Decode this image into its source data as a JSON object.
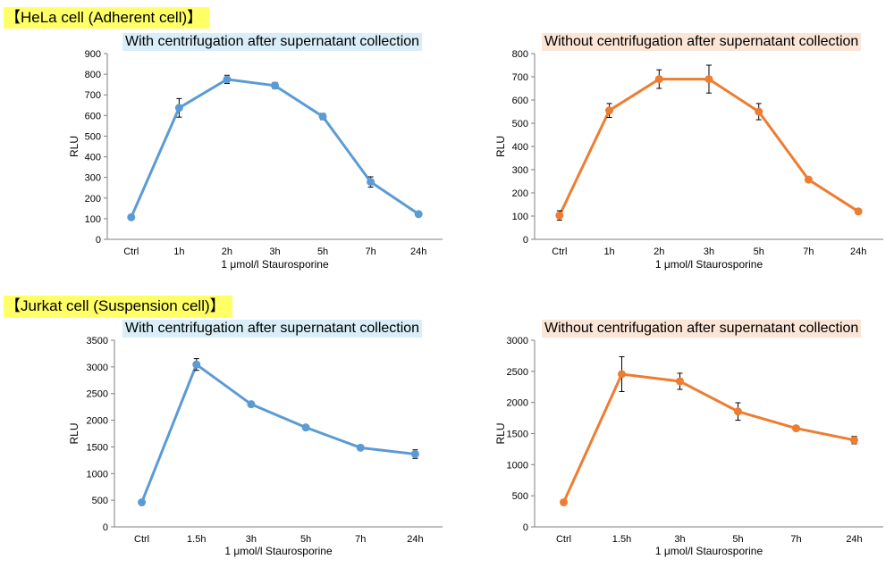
{
  "sections": [
    {
      "label": "【HeLa cell (Adherent cell)】"
    },
    {
      "label": "【Jurkat cell (Suspension cell)】"
    }
  ],
  "chart_data": [
    {
      "type": "line",
      "title": "With centrifugation after supernatant collection",
      "title_bg": "#d9eef8",
      "color": "#5b9bd5",
      "xlabel": "1 μmol/l  Staurosporine",
      "ylabel": "RLU",
      "categories": [
        "Ctrl",
        "1h",
        "2h",
        "3h",
        "5h",
        "7h",
        "24h"
      ],
      "values": [
        107,
        637,
        775,
        745,
        595,
        278,
        122
      ],
      "errors": [
        10,
        45,
        20,
        15,
        15,
        25,
        8
      ],
      "ylim": [
        0,
        900
      ],
      "yticks": [
        0,
        100,
        200,
        300,
        400,
        500,
        600,
        700,
        800,
        900
      ],
      "grid": false
    },
    {
      "type": "line",
      "title": "Without centrifugation after supernatant collection",
      "title_bg": "#fbe5d6",
      "color": "#ed7d31",
      "xlabel": "1 μmol/l  Staurosporine",
      "ylabel": "RLU",
      "categories": [
        "Ctrl",
        "1h",
        "2h",
        "3h",
        "5h",
        "7h",
        "24h"
      ],
      "values": [
        103,
        555,
        690,
        690,
        550,
        257,
        120
      ],
      "errors": [
        20,
        30,
        40,
        60,
        35,
        10,
        10
      ],
      "ylim": [
        0,
        800
      ],
      "yticks": [
        0,
        100,
        200,
        300,
        400,
        500,
        600,
        700,
        800
      ],
      "grid": false
    },
    {
      "type": "line",
      "title": "With centrifugation after supernatant collection",
      "title_bg": "#d9eef8",
      "color": "#5b9bd5",
      "xlabel": "1 μmol/l  Staurosporine",
      "ylabel": "RLU",
      "categories": [
        "Ctrl",
        "1.5h",
        "3h",
        "5h",
        "7h",
        "24h"
      ],
      "values": [
        460,
        3045,
        2300,
        1865,
        1485,
        1365
      ],
      "errors": [
        20,
        110,
        40,
        30,
        40,
        80
      ],
      "ylim": [
        0,
        3500
      ],
      "yticks": [
        0,
        500,
        1000,
        1500,
        2000,
        2500,
        3000,
        3500
      ],
      "grid": false
    },
    {
      "type": "line",
      "title": "Without centrifugation after supernatant collection",
      "title_bg": "#fbe5d6",
      "color": "#ed7d31",
      "xlabel": "1 μmol/l  Staurosporine",
      "ylabel": "RLU",
      "categories": [
        "Ctrl",
        "1.5h",
        "3h",
        "5h",
        "7h",
        "24h"
      ],
      "values": [
        395,
        2455,
        2340,
        1855,
        1585,
        1395
      ],
      "errors": [
        15,
        280,
        130,
        140,
        30,
        60
      ],
      "ylim": [
        0,
        3000
      ],
      "yticks": [
        0,
        500,
        1000,
        1500,
        2000,
        2500,
        3000
      ],
      "grid": false
    }
  ]
}
